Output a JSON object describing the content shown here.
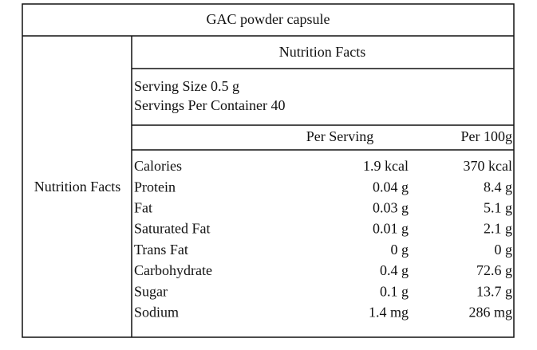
{
  "title": "GAC powder capsule",
  "side_label": "Nutrition Facts",
  "header": "Nutrition Facts",
  "serving": [
    "Serving Size 0.5 g",
    "Servings Per Container 40"
  ],
  "columns": [
    "Per Serving",
    "Per 100g"
  ],
  "rows": [
    [
      "Calories",
      "1.9 kcal",
      "370 kcal"
    ],
    [
      "Protein",
      "0.04 g",
      "8.4 g"
    ],
    [
      "Fat",
      "0.03 g",
      "5.1 g"
    ],
    [
      "Saturated Fat",
      "0.01 g",
      "2.1 g"
    ],
    [
      "Trans Fat",
      "0 g",
      "0 g"
    ],
    [
      "Carbohydrate",
      "0.4 g",
      "72.6 g"
    ],
    [
      "Sugar",
      "0.1 g",
      "13.7 g"
    ],
    [
      "Sodium",
      "1.4 mg",
      "286 mg"
    ]
  ]
}
